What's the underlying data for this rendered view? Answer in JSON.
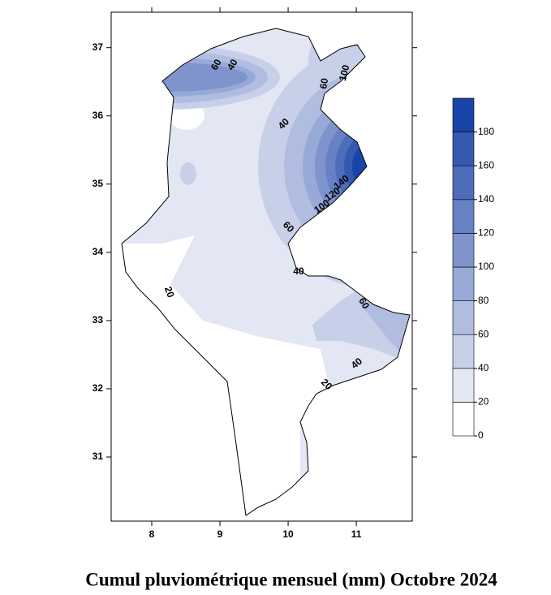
{
  "title": "Cumul pluviométrique mensuel (mm)  Octobre 2024",
  "map": {
    "xlim": [
      7.405,
      11.82
    ],
    "ylim": [
      30.06,
      37.52
    ],
    "xticks": [
      8,
      9,
      10,
      11
    ],
    "yticks": [
      37,
      36,
      35,
      34,
      33,
      32,
      31
    ],
    "contour_labels": [
      60,
      40,
      60,
      100,
      40,
      140,
      120,
      100,
      60,
      40,
      20,
      60,
      40,
      20
    ]
  },
  "colorbar": {
    "ticks": [
      0,
      20,
      40,
      60,
      80,
      100,
      120,
      140,
      160,
      180
    ],
    "lim": [
      0,
      200
    ],
    "colors": [
      "#ffffff",
      "#e3e7f4",
      "#c8d0e9",
      "#b0bde0",
      "#97a9d7",
      "#7f94cd",
      "#6681c4",
      "#4d6dbb",
      "#3459b1",
      "#1a45a8"
    ]
  }
}
